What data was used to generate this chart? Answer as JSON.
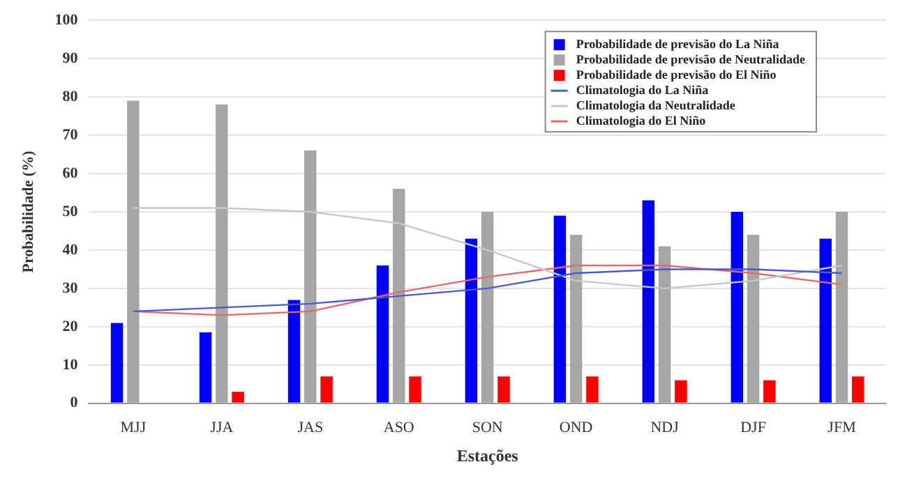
{
  "chart_data": {
    "type": "bar",
    "xlabel": "Estações",
    "ylabel": "Probabilidade (%)",
    "categories": [
      "MJJ",
      "JJA",
      "JAS",
      "ASO",
      "SON",
      "OND",
      "NDJ",
      "DJF",
      "JFM"
    ],
    "series": [
      {
        "name": "Probabilidade de previsão do La Niña",
        "color": "#0000ff",
        "values": [
          21,
          18.5,
          27,
          36,
          43,
          49,
          53,
          50,
          43
        ]
      },
      {
        "name": "Probabilidade de previsão de Neutralidade",
        "color": "#a6a6a6",
        "values": [
          79,
          78,
          66,
          56,
          50,
          44,
          41,
          44,
          50
        ]
      },
      {
        "name": "Probabilidade de previsão do El Niño",
        "color": "#ff0000",
        "values": [
          0,
          3,
          7,
          7,
          7,
          7,
          6,
          6,
          7
        ]
      },
      {
        "name": "Climatologia do La Niña",
        "type": "line",
        "color": "#4a5acb",
        "values": [
          24,
          25,
          26,
          28,
          30,
          34,
          35,
          35,
          34
        ]
      },
      {
        "name": "Climatologia da Neutralidade",
        "type": "line",
        "color": "#c8c8c8",
        "values": [
          51,
          51,
          50,
          47,
          40,
          32,
          30,
          32,
          36
        ]
      },
      {
        "name": "Climatologia do El Niño",
        "type": "line",
        "color": "#e06a6a",
        "values": [
          24,
          23,
          24,
          29,
          33,
          36,
          36,
          34,
          31
        ]
      }
    ],
    "ylim": [
      0,
      100
    ],
    "yticks": [
      0,
      10,
      20,
      30,
      40,
      50,
      60,
      70,
      80,
      90,
      100
    ],
    "grid": "y",
    "legend": "top right",
    "marker": "none"
  }
}
